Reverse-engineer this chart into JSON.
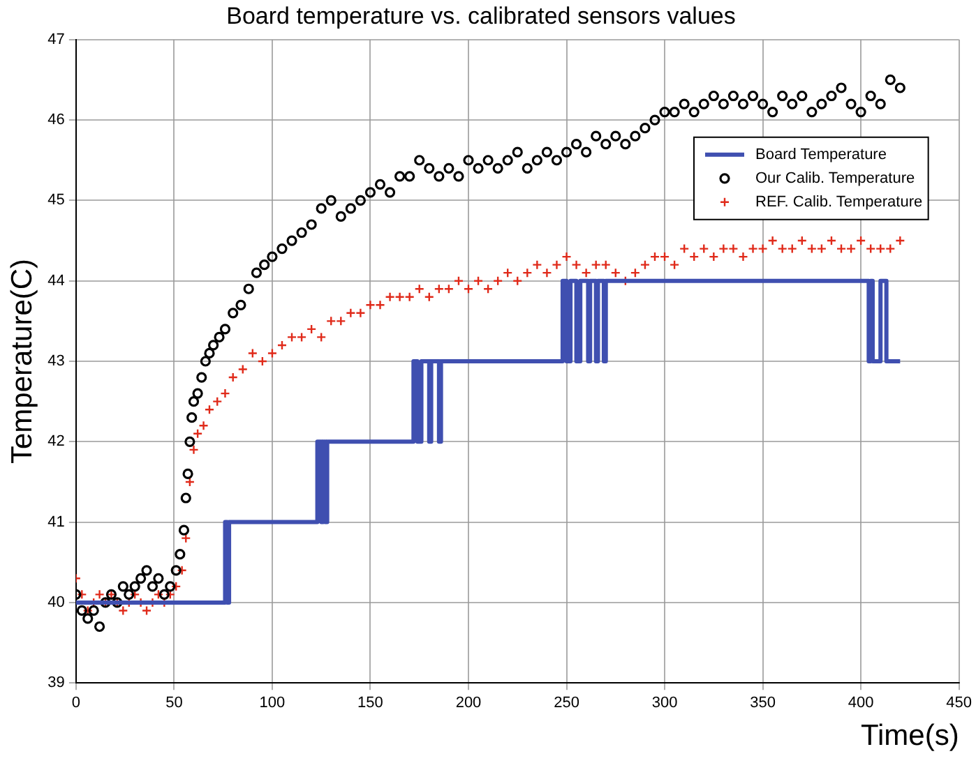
{
  "chart_data": {
    "type": "line",
    "title": "Board temperature vs. calibrated sensors values",
    "xlabel": "Time(s)",
    "ylabel": "Temperature(C)",
    "xlim": [
      0,
      450
    ],
    "xticks": [
      0,
      50,
      100,
      150,
      200,
      250,
      300,
      350,
      400,
      450
    ],
    "ylim": [
      39,
      47
    ],
    "yticks": [
      39,
      40,
      41,
      42,
      43,
      44,
      45,
      46,
      47
    ],
    "grid": true,
    "legend": "top right",
    "line_style": "solid",
    "series": [
      {
        "name": "Board Temperature",
        "type": "line",
        "marker": "none",
        "color": "#3f4fb0",
        "x": [
          0,
          76,
          76,
          77,
          77,
          78,
          78,
          123,
          123,
          125,
          125,
          126,
          126,
          127,
          127,
          128,
          128,
          172,
          172,
          174,
          174,
          176,
          176,
          180,
          180,
          181,
          181,
          185,
          185,
          186,
          186,
          248,
          248,
          250,
          250,
          252,
          252,
          255,
          255,
          257,
          257,
          261,
          261,
          262,
          262,
          265,
          265,
          266,
          266,
          269,
          269,
          270,
          270,
          404,
          404,
          405,
          405,
          406,
          406,
          410,
          410,
          413,
          413,
          420
        ],
        "values": [
          40,
          40,
          41,
          41,
          40,
          40,
          41,
          41,
          42,
          42,
          41,
          41,
          42,
          42,
          41,
          41,
          42,
          42,
          43,
          43,
          42,
          42,
          43,
          43,
          42,
          42,
          43,
          43,
          42,
          42,
          43,
          43,
          44,
          44,
          43,
          43,
          44,
          44,
          43,
          43,
          44,
          44,
          43,
          43,
          44,
          44,
          43,
          43,
          44,
          44,
          43,
          43,
          44,
          44,
          43,
          43,
          44,
          44,
          43,
          43,
          44,
          44,
          43,
          43
        ]
      },
      {
        "name": "Our Calib. Temperature",
        "type": "scatter",
        "marker": "circle",
        "color": "#000000",
        "x": [
          0,
          3,
          6,
          9,
          12,
          15,
          18,
          21,
          24,
          27,
          30,
          33,
          36,
          39,
          42,
          45,
          48,
          51,
          53,
          55,
          56,
          57,
          58,
          59,
          60,
          62,
          64,
          66,
          68,
          70,
          73,
          76,
          80,
          84,
          88,
          92,
          96,
          100,
          105,
          110,
          115,
          120,
          125,
          130,
          135,
          140,
          145,
          150,
          155,
          160,
          165,
          170,
          175,
          180,
          185,
          190,
          195,
          200,
          205,
          210,
          215,
          220,
          225,
          230,
          235,
          240,
          245,
          250,
          255,
          260,
          265,
          270,
          275,
          280,
          285,
          290,
          295,
          300,
          305,
          310,
          315,
          320,
          325,
          330,
          335,
          340,
          345,
          350,
          355,
          360,
          365,
          370,
          375,
          380,
          385,
          390,
          395,
          400,
          405,
          410,
          415,
          420
        ],
        "values": [
          40.1,
          39.9,
          39.8,
          39.9,
          39.7,
          40.0,
          40.1,
          40.0,
          40.2,
          40.1,
          40.2,
          40.3,
          40.4,
          40.2,
          40.3,
          40.1,
          40.2,
          40.4,
          40.6,
          40.9,
          41.3,
          41.6,
          42.0,
          42.3,
          42.5,
          42.6,
          42.8,
          43.0,
          43.1,
          43.2,
          43.3,
          43.4,
          43.6,
          43.7,
          43.9,
          44.1,
          44.2,
          44.3,
          44.4,
          44.5,
          44.6,
          44.7,
          44.9,
          45.0,
          44.8,
          44.9,
          45.0,
          45.1,
          45.2,
          45.1,
          45.3,
          45.3,
          45.5,
          45.4,
          45.3,
          45.4,
          45.3,
          45.5,
          45.4,
          45.5,
          45.4,
          45.5,
          45.6,
          45.4,
          45.5,
          45.6,
          45.5,
          45.6,
          45.7,
          45.6,
          45.8,
          45.7,
          45.8,
          45.7,
          45.8,
          45.9,
          46.0,
          46.1,
          46.1,
          46.2,
          46.1,
          46.2,
          46.3,
          46.2,
          46.3,
          46.2,
          46.3,
          46.2,
          46.1,
          46.3,
          46.2,
          46.3,
          46.1,
          46.2,
          46.3,
          46.4,
          46.2,
          46.1,
          46.3,
          46.2,
          46.5,
          46.4
        ]
      },
      {
        "name": "REF. Calib. Temperature",
        "type": "scatter",
        "marker": "cross",
        "color": "#e02a1a",
        "x": [
          0,
          3,
          6,
          9,
          12,
          15,
          18,
          21,
          24,
          27,
          30,
          33,
          36,
          39,
          42,
          45,
          48,
          51,
          54,
          56,
          58,
          60,
          62,
          65,
          68,
          72,
          76,
          80,
          85,
          90,
          95,
          100,
          105,
          110,
          115,
          120,
          125,
          130,
          135,
          140,
          145,
          150,
          155,
          160,
          165,
          170,
          175,
          180,
          185,
          190,
          195,
          200,
          205,
          210,
          215,
          220,
          225,
          230,
          235,
          240,
          245,
          250,
          255,
          260,
          265,
          270,
          275,
          280,
          285,
          290,
          295,
          300,
          305,
          310,
          315,
          320,
          325,
          330,
          335,
          340,
          345,
          350,
          355,
          360,
          365,
          370,
          375,
          380,
          385,
          390,
          395,
          400,
          405,
          410,
          415,
          420
        ],
        "values": [
          40.3,
          40.1,
          39.9,
          40.0,
          40.1,
          40.0,
          40.1,
          40.0,
          39.9,
          40.0,
          40.1,
          40.0,
          39.9,
          40.0,
          40.1,
          40.0,
          40.1,
          40.2,
          40.4,
          40.8,
          41.5,
          41.9,
          42.1,
          42.2,
          42.4,
          42.5,
          42.6,
          42.8,
          42.9,
          43.1,
          43.0,
          43.1,
          43.2,
          43.3,
          43.3,
          43.4,
          43.3,
          43.5,
          43.5,
          43.6,
          43.6,
          43.7,
          43.7,
          43.8,
          43.8,
          43.8,
          43.9,
          43.8,
          43.9,
          43.9,
          44.0,
          43.9,
          44.0,
          43.9,
          44.0,
          44.1,
          44.0,
          44.1,
          44.2,
          44.1,
          44.2,
          44.3,
          44.2,
          44.1,
          44.2,
          44.2,
          44.1,
          44.0,
          44.1,
          44.2,
          44.3,
          44.3,
          44.2,
          44.4,
          44.3,
          44.4,
          44.3,
          44.4,
          44.4,
          44.3,
          44.4,
          44.4,
          44.5,
          44.4,
          44.4,
          44.5,
          44.4,
          44.4,
          44.5,
          44.4,
          44.4,
          44.5,
          44.4,
          44.4,
          44.4,
          44.5
        ]
      }
    ]
  }
}
